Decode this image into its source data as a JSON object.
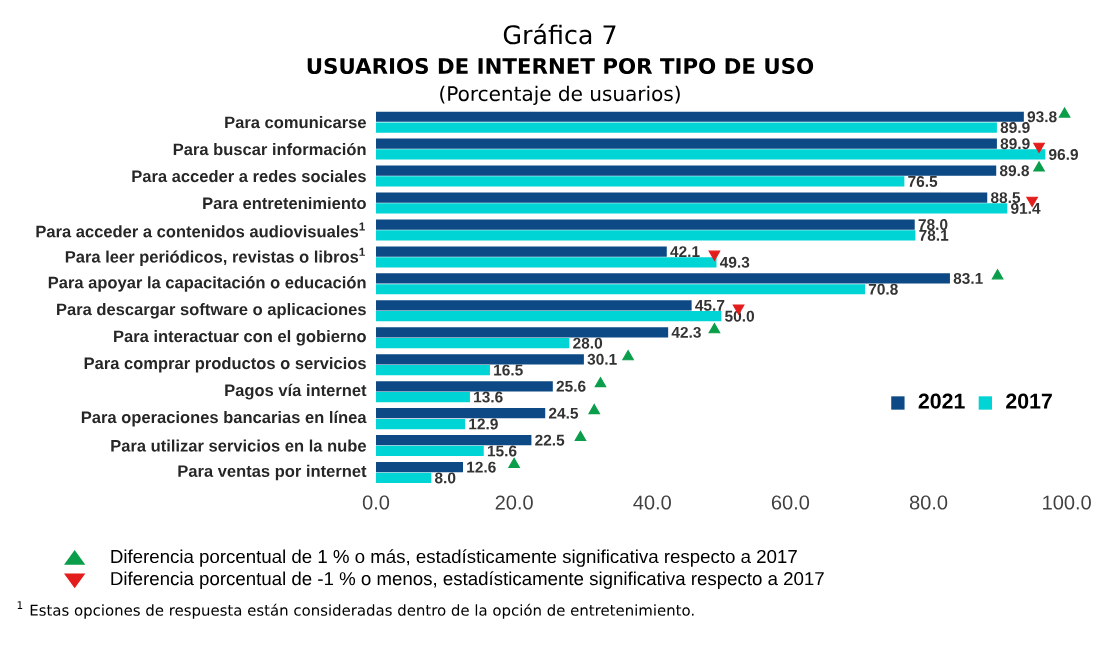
{
  "chart_data": {
    "type": "bar",
    "orientation": "horizontal",
    "title": "Gráfica 7",
    "subtitle": "USUARIOS DE INTERNET POR TIPO DE USO",
    "categories": [
      "Para comunicarse",
      "Para buscar información",
      "Para acceder a redes sociales",
      "Para entretenimiento",
      "Para acceder a contenidos audiovisuales$^{1}$",
      "Para leer periódicos, revistas o libros$^{1}$",
      "Para apoyar la capacitación o educación",
      "Para descargar software o aplicaciones",
      "Para interactuar con el gobierno",
      "Para comprar productos o servicios",
      "Pagos vía internet",
      "Para operaciones bancarias en línea",
      "Para utilizar servicios en la nube",
      "Para ventas por internet"
    ],
    "series": [
      {
        "name": "2021",
        "color": "#0d4a85",
        "values": [
          93.8,
          89.9,
          89.8,
          88.5,
          78.0,
          42.1,
          83.1,
          45.7,
          42.3,
          30.1,
          25.6,
          24.5,
          22.5,
          12.6
        ],
        "value_labels": [
          "93.8",
          "89.9",
          "89.8",
          "88.5",
          "78.0",
          "42.1",
          "83.1",
          "45.7",
          "42.3",
          "30.1",
          "25.6",
          "24.5",
          "22.5",
          "12.6"
        ]
      },
      {
        "name": "2017",
        "color": "#00d4d4",
        "values": [
          89.9,
          96.9,
          76.5,
          91.4,
          78.1,
          49.3,
          70.8,
          50.0,
          28.0,
          16.5,
          13.6,
          12.9,
          15.6,
          8.0
        ],
        "value_labels": [
          "89.9",
          "96.9",
          "76.5",
          "91.4",
          "78.1",
          "49.3",
          "70.8",
          "50.0",
          "28.0",
          "16.5",
          "13.6",
          "12.9",
          "15.6",
          "8.0"
        ]
      },
      {
        "name": "Diferencia porcentual de 1 % o más, estadísticamente significativa respecto a 2017",
        "type": "scatter",
        "marker": "triangle",
        "color": "#0a9e4a",
        "values": [
          99.7,
          null,
          96,
          null,
          null,
          null,
          90,
          null,
          49,
          36.5,
          32.5,
          31.6,
          29.6,
          20
        ]
      },
      {
        "name": "Diferencia porcentual de -1 % o menos, estadísticamente significativa respecto a 2017",
        "type": "scatter",
        "marker": "triangle",
        "color": "#e31c1c",
        "values": [
          null,
          96,
          null,
          95,
          null,
          49,
          null,
          52.5,
          null,
          null,
          null,
          null,
          null,
          null
        ]
      }
    ],
    "xlim": [
      0,
      100
    ],
    "xticks": [
      {
        "value": 0,
        "label": "0.0"
      },
      {
        "value": 20,
        "label": "20.0"
      },
      {
        "value": 40,
        "label": "40.0"
      },
      {
        "value": 60,
        "label": "60.0"
      },
      {
        "value": 80,
        "label": "80.0"
      },
      {
        "value": 100,
        "label": "100.0"
      }
    ],
    "legend": "bottom",
    "annotations": [
      "(Porcentaje de usuarios)",
      "$^{1}$ Estas opciones de respuesta están consideradas dentro de la opción de entretenimiento."
    ]
  }
}
